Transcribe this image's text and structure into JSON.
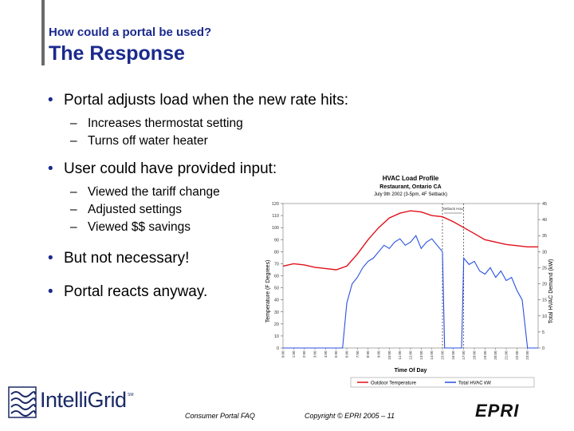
{
  "slide": {
    "kicker": "How could a portal be used?",
    "title": "The Response"
  },
  "bullets": [
    {
      "text": "Portal adjusts load when the new rate hits:",
      "subs": [
        "Increases thermostat setting",
        "Turns off water heater"
      ]
    },
    {
      "text": "User could have provided input:",
      "subs": [
        "Viewed the tariff change",
        "Adjusted settings",
        "Viewed $$ savings"
      ]
    },
    {
      "text": "But not necessary!",
      "subs": []
    },
    {
      "text": "Portal reacts anyway.",
      "subs": []
    }
  ],
  "chart_data": {
    "type": "line",
    "title": "HVAC Load Profile",
    "subtitle": "Restaurant, Ontario CA",
    "subtitle2": "July 9th 2002 (3-5pm, 4F Setback)",
    "xlabel": "Time Of Day",
    "ylabel_left": "Temperature (F Degrees)",
    "ylabel_right": "Total HVAC Demand (kW)",
    "ylim_left": [
      0,
      120
    ],
    "ylim_right": [
      0,
      45
    ],
    "yticks_left": [
      "0",
      "10",
      "20",
      "30",
      "40",
      "50",
      "60",
      "70",
      "80",
      "90",
      "100",
      "110",
      "120"
    ],
    "yticks_right": [
      "0",
      "5",
      "10",
      "15",
      "20",
      "25",
      "30",
      "35",
      "40",
      "45"
    ],
    "xticks": [
      "0:00",
      "1:00",
      "2:00",
      "3:00",
      "4:00",
      "5:00",
      "6:00",
      "7:00",
      "8:00",
      "9:00",
      "10:00",
      "11:00",
      "12:00",
      "13:00",
      "14:00",
      "15:00",
      "16:00",
      "17:00",
      "18:00",
      "19:00",
      "20:00",
      "21:00",
      "22:00",
      "23:00"
    ],
    "annotation": "Setback Hour",
    "setback_hours": [
      15,
      17
    ],
    "series": [
      {
        "name": "Outdoor Temperature",
        "color": "#e0101a",
        "x": [
          0,
          1,
          2,
          3,
          4,
          5,
          6,
          7,
          8,
          9,
          10,
          11,
          12,
          13,
          14,
          15,
          16,
          17,
          18,
          19,
          20,
          21,
          22,
          23,
          24
        ],
        "values": [
          68,
          70,
          69,
          67,
          66,
          65,
          68,
          78,
          90,
          100,
          108,
          112,
          114,
          113,
          110,
          109,
          105,
          100,
          95,
          90,
          88,
          86,
          85,
          84,
          84
        ]
      },
      {
        "name": "Total HVAC kW",
        "color": "#2850e0",
        "x": [
          0,
          1,
          2,
          3,
          4,
          5,
          5.6,
          6,
          6.5,
          7,
          7.5,
          8,
          8.5,
          9,
          9.5,
          10,
          10.5,
          11,
          11.5,
          12,
          12.5,
          13,
          13.5,
          14,
          14.5,
          15,
          15.2,
          16,
          16.8,
          17,
          17.5,
          18,
          18.5,
          19,
          19.5,
          20,
          20.5,
          21,
          21.5,
          22,
          22.5,
          23,
          23.5,
          24
        ],
        "values": [
          0,
          0,
          0,
          0,
          0,
          0,
          0,
          14,
          20,
          22,
          25,
          27,
          28,
          30,
          32,
          31,
          33,
          34,
          32,
          33,
          35,
          31,
          33,
          34,
          32,
          30,
          0,
          0,
          0,
          28,
          26,
          27,
          24,
          23,
          25,
          22,
          24,
          21,
          22,
          18,
          15,
          0,
          0,
          0
        ]
      }
    ]
  },
  "footer": {
    "left": "Consumer Portal FAQ",
    "middle": "Copyright © EPRI 2005 – 11",
    "logo_text": "IntelliGrid",
    "logo_mark": "SM",
    "brand": "EPRI"
  }
}
